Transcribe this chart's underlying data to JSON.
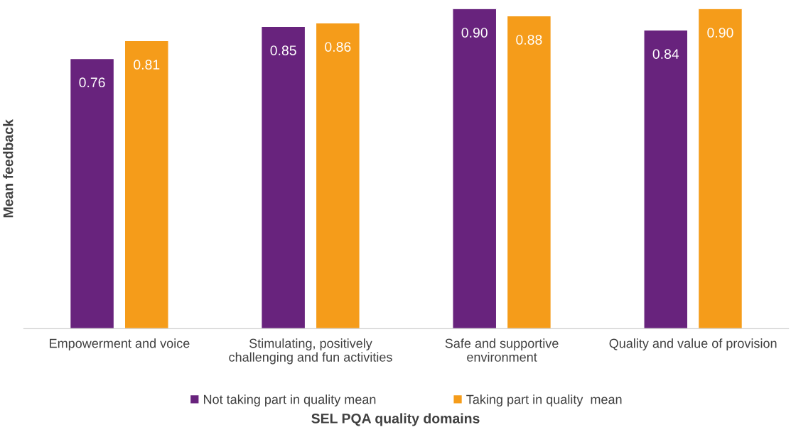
{
  "chart_data": {
    "type": "bar",
    "annotations": [
      "SEL PQA quality domains"
    ],
    "ylabel": "Mean feedback",
    "categories": [
      "Empowerment and voice",
      "Stimulating, positively\nchallenging and fun activities",
      "Safe and supportive\nenvironment",
      "Quality and value of provision"
    ],
    "series": [
      {
        "name": "Not taking part in quality mean",
        "color": "#68237d",
        "values": [
          0.76,
          0.85,
          0.9,
          0.84
        ],
        "value_labels": [
          "0.76",
          "0.85",
          "0.90",
          "0.84"
        ]
      },
      {
        "name": "Taking part in quality  mean",
        "color": "#f59c1a",
        "values": [
          0.81,
          0.86,
          0.88,
          0.9
        ],
        "value_labels": [
          "0.81",
          "0.86",
          "0.88",
          "0.90"
        ]
      }
    ],
    "ylim": [
      0,
      0.9
    ],
    "tick_labels": "x",
    "legend": "bottom",
    "grid": false
  }
}
